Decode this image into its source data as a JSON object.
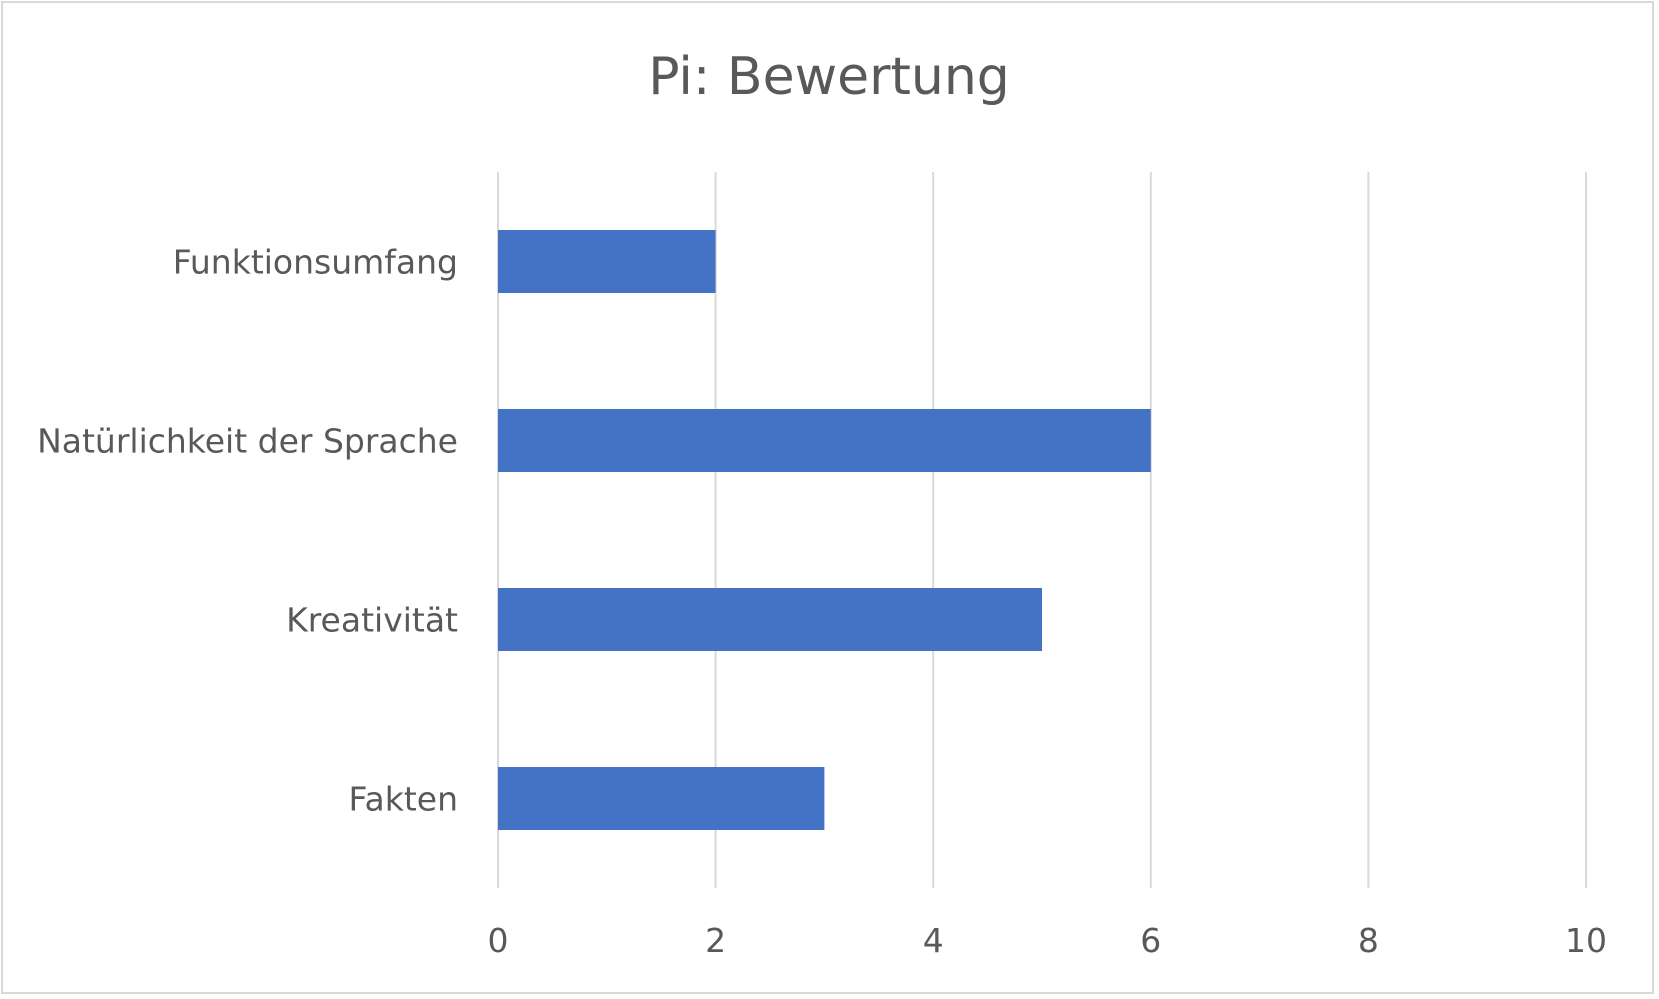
{
  "chart_data": {
    "type": "bar",
    "orientation": "horizontal",
    "title": "Pi: Bewertung",
    "categories": [
      "Funktionsumfang",
      "Natürlichkeit der Sprache",
      "Kreativität",
      "Fakten"
    ],
    "values": [
      2,
      6,
      5,
      3
    ],
    "xlim": [
      0,
      10
    ],
    "x_ticks": [
      "0",
      "2",
      "4",
      "6",
      "8",
      "10"
    ],
    "grid": true,
    "legend": "none",
    "bar_color": "#4472C4"
  }
}
